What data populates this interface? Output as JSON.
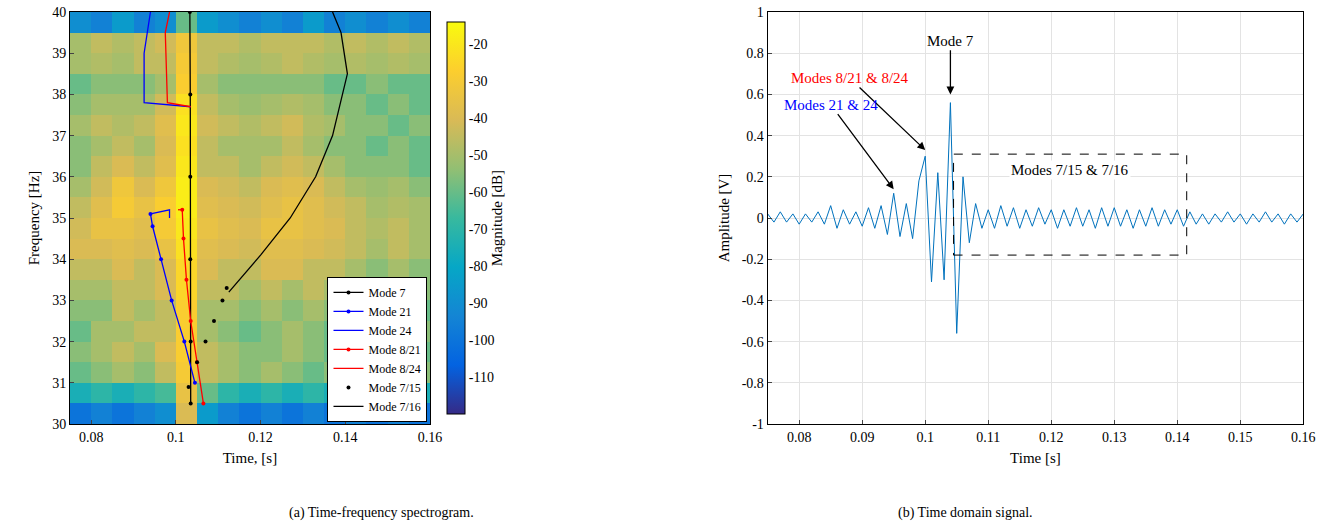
{
  "chart_data": [
    {
      "type": "heatmap",
      "caption": "(a) Time-frequency spectrogram.",
      "xlabel": "Time, [s]",
      "ylabel": "Frequency [Hz]",
      "xlim": [
        0.075,
        0.16
      ],
      "xticks": [
        0.08,
        0.1,
        0.12,
        0.14,
        0.16
      ],
      "ylim": [
        30,
        40
      ],
      "yticks": [
        30,
        31,
        32,
        33,
        34,
        35,
        36,
        37,
        38,
        39,
        40
      ],
      "x": [
        0.0775,
        0.0825,
        0.0875,
        0.0925,
        0.0975,
        0.1025,
        0.1075,
        0.1125,
        0.1175,
        0.1225,
        0.1275,
        0.1325,
        0.1375,
        0.1425,
        0.1475,
        0.1525,
        0.1575
      ],
      "y": [
        30.25,
        30.75,
        31.25,
        31.75,
        32.25,
        32.75,
        33.25,
        33.75,
        34.25,
        34.75,
        35.25,
        35.75,
        36.25,
        36.75,
        37.25,
        37.75,
        38.25,
        38.75,
        39.25,
        39.75
      ],
      "z": [
        [
          -100,
          -95,
          -100,
          -95,
          -90,
          -40,
          -85,
          -95,
          -100,
          -95,
          -100,
          -95,
          -100,
          -95,
          -100,
          -95,
          -100
        ],
        [
          -75,
          -70,
          -75,
          -70,
          -65,
          -35,
          -60,
          -70,
          -75,
          -70,
          -75,
          -70,
          -75,
          -70,
          -75,
          -70,
          -75
        ],
        [
          -60,
          -55,
          -50,
          -55,
          -45,
          -30,
          -45,
          -50,
          -55,
          -50,
          -55,
          -60,
          -55,
          -50,
          -55,
          -60,
          -55
        ],
        [
          -55,
          -50,
          -45,
          -50,
          -40,
          -28,
          -45,
          -50,
          -55,
          -55,
          -50,
          -55,
          -60,
          -55,
          -50,
          -55,
          -60
        ],
        [
          -60,
          -50,
          -50,
          -45,
          -45,
          -28,
          -50,
          -55,
          -60,
          -55,
          -50,
          -55,
          -60,
          -55,
          -55,
          -60,
          -55
        ],
        [
          -55,
          -55,
          -45,
          -50,
          -45,
          -28,
          -50,
          -50,
          -55,
          -50,
          -55,
          -50,
          -55,
          -60,
          -55,
          -55,
          -60
        ],
        [
          -50,
          -50,
          -45,
          -45,
          -40,
          -25,
          -45,
          -45,
          -50,
          -45,
          -50,
          -45,
          -50,
          -55,
          -60,
          -55,
          -55
        ],
        [
          -45,
          -45,
          -40,
          -45,
          -40,
          -25,
          -40,
          -45,
          -45,
          -40,
          -40,
          -45,
          -45,
          -50,
          -55,
          -50,
          -55
        ],
        [
          -40,
          -40,
          -38,
          -40,
          -35,
          -22,
          -38,
          -40,
          -42,
          -38,
          -38,
          -40,
          -42,
          -45,
          -50,
          -45,
          -50
        ],
        [
          -42,
          -35,
          -35,
          -38,
          -30,
          -20,
          -35,
          -38,
          -40,
          -35,
          -35,
          -38,
          -40,
          -45,
          -48,
          -45,
          -50
        ],
        [
          -45,
          -38,
          -30,
          -35,
          -28,
          -18,
          -38,
          -40,
          -42,
          -38,
          -35,
          -38,
          -42,
          -45,
          -50,
          -48,
          -50
        ],
        [
          -50,
          -42,
          -32,
          -40,
          -32,
          -18,
          -40,
          -42,
          -45,
          -40,
          -38,
          -40,
          -45,
          -50,
          -52,
          -50,
          -55
        ],
        [
          -55,
          -45,
          -40,
          -45,
          -38,
          -20,
          -45,
          -45,
          -50,
          -45,
          -42,
          -45,
          -50,
          -55,
          -55,
          -55,
          -60
        ],
        [
          -55,
          -50,
          -45,
          -50,
          -40,
          -22,
          -45,
          -50,
          -50,
          -50,
          -45,
          -50,
          -55,
          -55,
          -60,
          -55,
          -60
        ],
        [
          -50,
          -45,
          -48,
          -45,
          -38,
          -20,
          -42,
          -45,
          -48,
          -45,
          -42,
          -48,
          -50,
          -55,
          -55,
          -60,
          -55
        ],
        [
          -55,
          -50,
          -50,
          -50,
          -42,
          -22,
          -45,
          -50,
          -52,
          -50,
          -48,
          -50,
          -55,
          -55,
          -60,
          -55,
          -60
        ],
        [
          -60,
          -55,
          -55,
          -55,
          -50,
          -28,
          -50,
          -55,
          -55,
          -55,
          -55,
          -55,
          -60,
          -60,
          -55,
          -60,
          -60
        ],
        [
          -50,
          -48,
          -50,
          -45,
          -45,
          -30,
          -45,
          -48,
          -50,
          -48,
          -45,
          -48,
          -50,
          -48,
          -50,
          -48,
          -50
        ],
        [
          -50,
          -45,
          -48,
          -45,
          -42,
          -32,
          -45,
          -45,
          -48,
          -45,
          -45,
          -45,
          -48,
          -45,
          -48,
          -45,
          -48
        ],
        [
          -90,
          -95,
          -85,
          -95,
          -90,
          -60,
          -85,
          -90,
          -95,
          -90,
          -95,
          -85,
          -95,
          -90,
          -95,
          -90,
          -95
        ]
      ],
      "colorbar": {
        "title": "Magnitude [dB]",
        "range": [
          -120,
          -14
        ],
        "ticks": [
          -20,
          -30,
          -40,
          -50,
          -60,
          -70,
          -80,
          -90,
          -100,
          -110
        ]
      },
      "legend": "lower right",
      "series": [
        {
          "name": "Mode 7",
          "color": "#000000",
          "marker": "dot",
          "line_style": "solid",
          "x": [
            0.1035,
            0.1035,
            0.1034,
            0.1034,
            0.1034,
            0.1033
          ],
          "y": [
            30.5,
            32,
            34,
            36,
            38,
            40
          ]
        },
        {
          "name": "Mode 21",
          "color": "#0000ff",
          "marker": "dot",
          "line_style": "solid",
          "x": [
            0.1045,
            0.102,
            0.099,
            0.0965,
            0.0945,
            0.094
          ],
          "y": [
            31.0,
            32,
            33,
            34,
            34.8,
            35.1
          ]
        },
        {
          "name": "Mode 24",
          "color": "#0000ff",
          "marker": "none",
          "line_style": "solid",
          "x": [
            0.094,
            0.0985,
            0.0985,
            null,
            0.1035,
            0.0925,
            0.0925,
            0.094
          ],
          "y": [
            35.1,
            35.2,
            35.0,
            null,
            37.7,
            37.8,
            39,
            40
          ]
        },
        {
          "name": "Mode 8/21",
          "color": "#ff0000",
          "marker": "dot",
          "line_style": "solid",
          "x": [
            0.1065,
            0.105,
            0.1035,
            0.1025,
            0.1018,
            0.1015
          ],
          "y": [
            30.5,
            31.5,
            32.5,
            33.5,
            34.5,
            35.2
          ]
        },
        {
          "name": "Mode 8/24",
          "color": "#ff0000",
          "marker": "none",
          "line_style": "solid",
          "x": [
            0.1015,
            0.1005,
            null,
            0.1035,
            0.098,
            0.0975,
            0.0985
          ],
          "y": [
            35.2,
            35.2,
            null,
            37.7,
            37.8,
            39.5,
            40
          ]
        },
        {
          "name": "Mode 7/15",
          "color": "#000000",
          "marker": "dot",
          "line_style": "none",
          "x": [
            0.103,
            0.105,
            0.107,
            0.109,
            0.111,
            0.112
          ],
          "y": [
            30.9,
            31.5,
            32.0,
            32.5,
            33.0,
            33.3
          ]
        },
        {
          "name": "Mode 7/16",
          "color": "#000000",
          "marker": "none",
          "line_style": "solid",
          "x": [
            0.1125,
            0.12,
            0.127,
            0.133,
            0.137,
            0.1405,
            0.139,
            0.137
          ],
          "y": [
            33.2,
            34.1,
            35,
            36,
            37,
            38.5,
            39.5,
            40
          ]
        }
      ]
    },
    {
      "type": "line",
      "caption": "(b) Time domain signal.",
      "xlabel": "Time [s]",
      "ylabel": "Amplitude [V]",
      "xlim": [
        0.075,
        0.16
      ],
      "xticks": [
        0.08,
        0.09,
        0.1,
        0.11,
        0.12,
        0.13,
        0.14,
        0.15,
        0.16
      ],
      "ylim": [
        -1,
        1
      ],
      "yticks": [
        -1,
        -0.8,
        -0.6,
        -0.4,
        -0.2,
        0,
        0.2,
        0.4,
        0.6,
        0.8,
        1
      ],
      "grid": true,
      "color": "#0072bd",
      "x": [
        0.075,
        0.076,
        0.077,
        0.078,
        0.079,
        0.08,
        0.081,
        0.082,
        0.083,
        0.084,
        0.085,
        0.086,
        0.087,
        0.088,
        0.089,
        0.09,
        0.091,
        0.092,
        0.093,
        0.094,
        0.095,
        0.096,
        0.097,
        0.098,
        0.099,
        0.1,
        0.101,
        0.102,
        0.103,
        0.104,
        0.105,
        0.106,
        0.107,
        0.108,
        0.109,
        0.11,
        0.111,
        0.112,
        0.113,
        0.114,
        0.115,
        0.116,
        0.117,
        0.118,
        0.119,
        0.12,
        0.121,
        0.122,
        0.123,
        0.124,
        0.125,
        0.126,
        0.127,
        0.128,
        0.129,
        0.13,
        0.131,
        0.132,
        0.133,
        0.134,
        0.135,
        0.136,
        0.137,
        0.138,
        0.139,
        0.14,
        0.141,
        0.142,
        0.143,
        0.144,
        0.145,
        0.146,
        0.147,
        0.148,
        0.149,
        0.15,
        0.151,
        0.152,
        0.153,
        0.154,
        0.155,
        0.156,
        0.157,
        0.158,
        0.159,
        0.16
      ],
      "values": [
        0.02,
        -0.02,
        0.03,
        -0.02,
        0.02,
        -0.03,
        0.02,
        -0.02,
        0.03,
        -0.03,
        0.06,
        -0.05,
        0.04,
        -0.03,
        0.03,
        -0.04,
        0.05,
        -0.05,
        0.06,
        -0.08,
        0.12,
        -0.09,
        0.07,
        -0.1,
        0.18,
        0.3,
        -0.31,
        0.22,
        -0.3,
        0.56,
        -0.56,
        0.2,
        -0.12,
        0.07,
        -0.05,
        0.04,
        -0.05,
        0.06,
        -0.04,
        0.05,
        -0.05,
        0.04,
        -0.04,
        0.05,
        -0.03,
        0.04,
        -0.05,
        0.04,
        -0.04,
        0.05,
        -0.04,
        0.04,
        -0.05,
        0.05,
        -0.04,
        0.05,
        -0.04,
        0.04,
        -0.05,
        0.04,
        -0.04,
        0.05,
        -0.04,
        0.04,
        -0.03,
        0.04,
        -0.04,
        0.03,
        -0.03,
        0.02,
        -0.03,
        0.02,
        -0.02,
        0.03,
        -0.02,
        0.02,
        -0.03,
        0.02,
        -0.02,
        0.03,
        -0.02,
        0.02,
        -0.03,
        0.02,
        -0.02,
        0.02
      ],
      "annotations": [
        {
          "text": "Mode 7",
          "color": "#000000",
          "x": 0.104,
          "y": 0.6,
          "text_x": 0.104,
          "text_y": 0.86
        },
        {
          "text": "Modes 8/21 & 8/24",
          "color": "#ff0000",
          "x": 0.1,
          "y": 0.33,
          "text_x": 0.088,
          "text_y": 0.68
        },
        {
          "text": "Modes 21 & 24",
          "color": "#0000ff",
          "x": 0.095,
          "y": 0.14,
          "text_x": 0.085,
          "text_y": 0.55
        }
      ],
      "region": {
        "label": "Modes 7/15 & 7/16",
        "x": [
          0.1045,
          0.1415
        ],
        "y": [
          -0.18,
          0.31
        ]
      }
    }
  ]
}
